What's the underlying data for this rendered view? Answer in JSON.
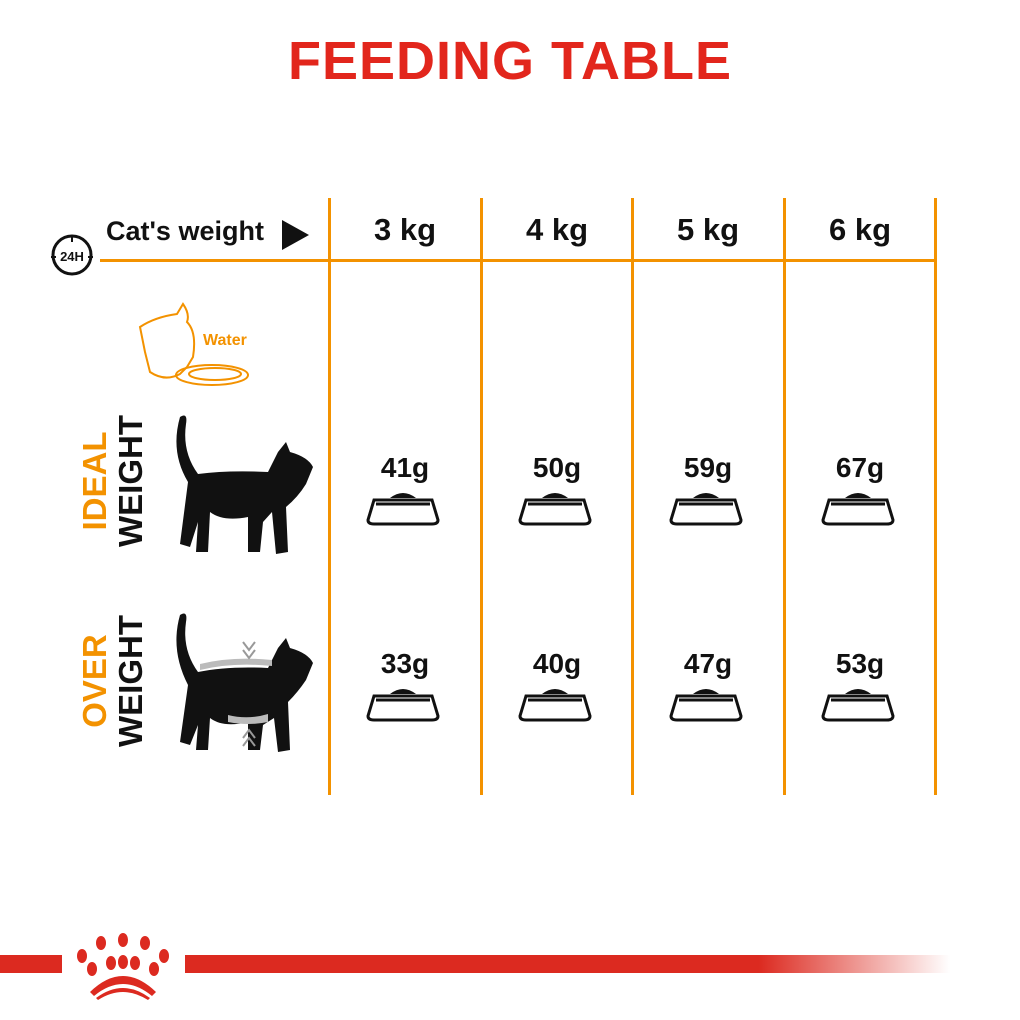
{
  "title": "FEEDING TABLE",
  "header": {
    "period_badge": "24H",
    "row_label": "Cat's weight",
    "arrow_icon": "play-triangle-icon",
    "columns": [
      "3 kg",
      "4 kg",
      "5 kg",
      "6 kg"
    ]
  },
  "water": {
    "label": "Water"
  },
  "rows": [
    {
      "label_top": "IDEAL",
      "label_bottom": "WEIGHT",
      "amounts": [
        "41g",
        "50g",
        "59g",
        "67g"
      ]
    },
    {
      "label_top": "OVER",
      "label_bottom": "WEIGHT",
      "amounts": [
        "33g",
        "40g",
        "47g",
        "53g"
      ]
    }
  ],
  "colors": {
    "title": "#e2261c",
    "grid": "#f39200",
    "brand_bar": "#dc2a20"
  },
  "brand": {
    "logo": "crown-paw-logo"
  }
}
